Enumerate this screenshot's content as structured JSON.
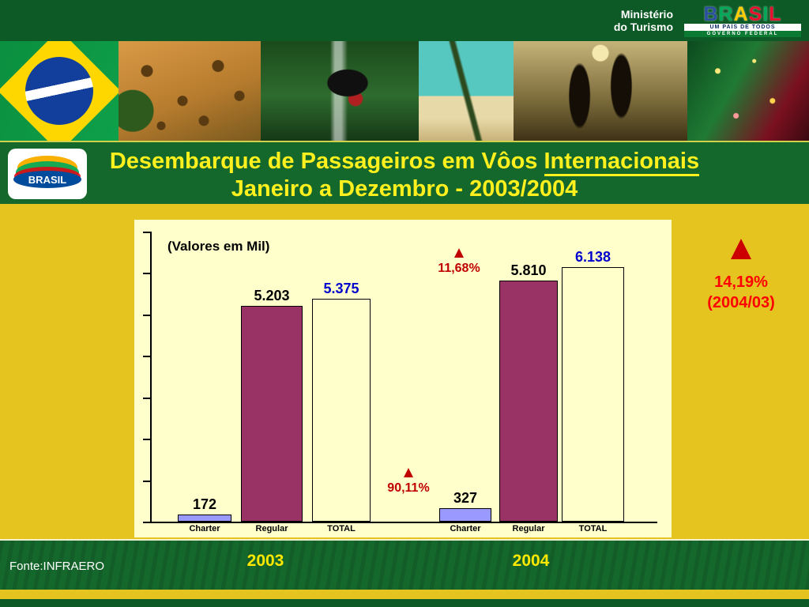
{
  "header": {
    "ministry_line1": "Ministério",
    "ministry_line2": "do Turismo",
    "gov_letters": [
      "B",
      "R",
      "A",
      "S",
      "I",
      "L"
    ],
    "gov_letter_colors": [
      "#2B50A1",
      "#00A859",
      "#FFCC00",
      "#E8112D",
      "#00A859",
      "#E8112D"
    ],
    "gov_tagline": "UM PAÍS DE TODOS",
    "gov_subtagline": "GOVERNO FEDERAL"
  },
  "badge": {
    "label": "BRASIL"
  },
  "title": {
    "line1_prefix": "Desembarque de Passageiros em Vôos ",
    "line1_underlined": "Internacionais",
    "line2": "Janeiro a Dezembro - 2003/2004"
  },
  "chart_data": {
    "type": "bar",
    "title": "(Valores em Mil)",
    "categories": [
      "Charter",
      "Regular",
      "TOTAL"
    ],
    "groups": [
      {
        "year": "2003",
        "values": [
          172,
          5203,
          5375
        ],
        "labels": [
          "172",
          "5.203",
          "5.375"
        ]
      },
      {
        "year": "2004",
        "values": [
          327,
          5810,
          6138
        ],
        "labels": [
          "327",
          "5.810",
          "6.138"
        ]
      }
    ],
    "ylim": [
      0,
      7000
    ],
    "grid": false,
    "bar_colors": {
      "Charter": "#9999FF",
      "Regular": "#993366",
      "TOTAL": "#FFFFCC"
    },
    "label_colors": {
      "Charter": "#000000",
      "Regular": "#000000",
      "TOTAL": "#0000CC"
    },
    "annotations": {
      "regular_growth": "11,68%",
      "charter_growth": "90,11%",
      "total_growth_line1": "14,19%",
      "total_growth_line2": "(2004/03)"
    }
  },
  "footer": {
    "source": "Fonte:INFRAERO",
    "year_left": "2003",
    "year_right": "2004"
  }
}
